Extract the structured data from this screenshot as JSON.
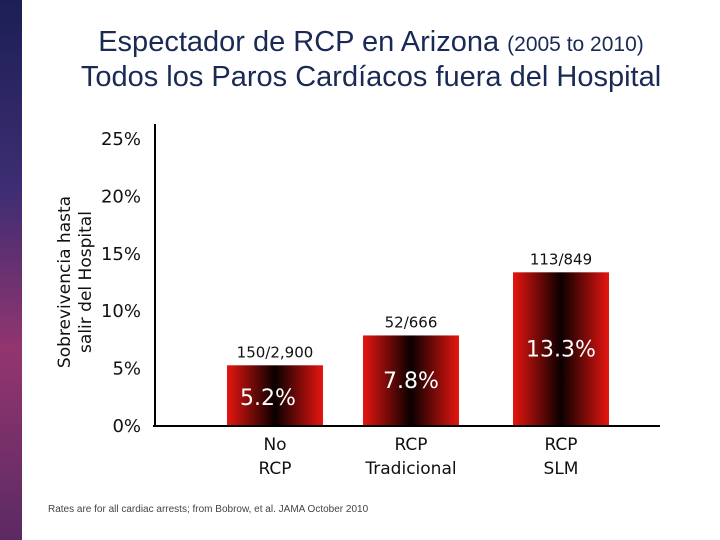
{
  "title_line1": "Espectador de RCP en Arizona",
  "title_line1_sub": "(2005 to 2010)",
  "title_line2": "Todos los Paros Cardíacos fuera del Hospital",
  "footnote": "Rates are for all cardiac arrests; from Bobrow, et al. JAMA October 2010",
  "colors": {
    "title": "#1a2a55",
    "bar_edge": "#e61510",
    "bar_center": "#0a0000"
  },
  "chart_data": {
    "type": "bar",
    "title": "Espectador de RCP en Arizona (2005 to 2010) / Todos los Paros Cardíacos fuera del Hospital",
    "ylabel_lines": [
      "Sobrevivencia hasta",
      "salir del Hospital"
    ],
    "xlabel": "",
    "ylim": [
      0,
      25
    ],
    "yticks": [
      0,
      5,
      10,
      15,
      20,
      25
    ],
    "ytick_labels": [
      "0%",
      "5%",
      "10%",
      "15%",
      "20%",
      "25%"
    ],
    "categories": [
      {
        "lines": [
          "No",
          "RCP"
        ]
      },
      {
        "lines": [
          "RCP",
          "Tradicional"
        ]
      },
      {
        "lines": [
          "RCP",
          "SLM"
        ]
      }
    ],
    "values": [
      5.2,
      7.8,
      13.3
    ],
    "value_labels": [
      "5.2%",
      "7.8%",
      "13.3%"
    ],
    "count_labels": [
      "150/2,900",
      "52/666",
      "113/849"
    ],
    "grid": false
  }
}
